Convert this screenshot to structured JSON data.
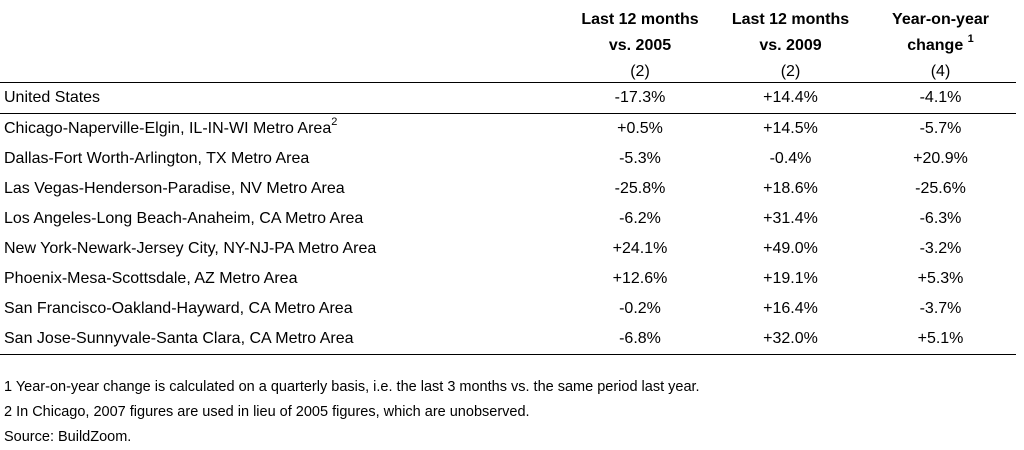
{
  "header": {
    "col_a_line1": "Last 12 months",
    "col_a_line2": "vs. 2005",
    "col_b_line1": "Last 12 months",
    "col_b_line2": "vs. 2009",
    "col_c_line1": "Year-on-year",
    "col_c_line2": "change",
    "col_c_sup": "1",
    "col_a_num": "(2)",
    "col_b_num": "(2)",
    "col_c_num": "(4)"
  },
  "national": {
    "label": "United States",
    "a": "-17.3%",
    "b": "+14.4%",
    "c": "-4.1%"
  },
  "rows": [
    {
      "label": "Chicago-Naperville-Elgin, IL-IN-WI Metro Area",
      "sup": "2",
      "a": "+0.5%",
      "b": "+14.5%",
      "c": "-5.7%"
    },
    {
      "label": "Dallas-Fort Worth-Arlington, TX Metro Area",
      "a": "-5.3%",
      "b": "-0.4%",
      "c": "+20.9%"
    },
    {
      "label": "Las Vegas-Henderson-Paradise, NV Metro Area",
      "a": "-25.8%",
      "b": "+18.6%",
      "c": "-25.6%"
    },
    {
      "label": "Los Angeles-Long Beach-Anaheim, CA Metro Area",
      "a": "-6.2%",
      "b": "+31.4%",
      "c": "-6.3%"
    },
    {
      "label": "New York-Newark-Jersey City, NY-NJ-PA Metro Area",
      "a": "+24.1%",
      "b": "+49.0%",
      "c": "-3.2%"
    },
    {
      "label": "Phoenix-Mesa-Scottsdale, AZ Metro Area",
      "a": "+12.6%",
      "b": "+19.1%",
      "c": "+5.3%"
    },
    {
      "label": "San Francisco-Oakland-Hayward, CA Metro Area",
      "a": "-0.2%",
      "b": "+16.4%",
      "c": "-3.7%"
    },
    {
      "label": "San Jose-Sunnyvale-Santa Clara, CA Metro Area",
      "a": "-6.8%",
      "b": "+32.0%",
      "c": "+5.1%"
    }
  ],
  "notes": {
    "note1": "1 Year-on-year change is calculated on a quarterly basis, i.e. the last 3 months vs. the same period last year.",
    "note2": "2 In Chicago, 2007 figures are used in lieu of 2005 figures, which are unobserved.",
    "source": "Source: BuildZoom."
  }
}
